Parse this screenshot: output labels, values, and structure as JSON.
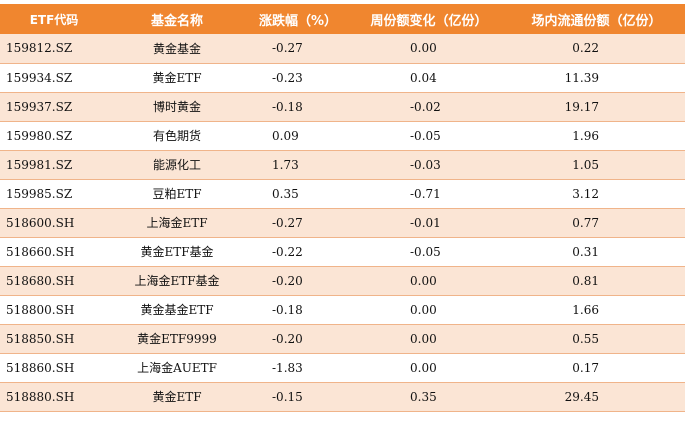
{
  "headers": {
    "code": "ETF代码",
    "name": "基金名称",
    "change": "涨跌幅（%）",
    "weekly_change": "周份额变化（亿份）",
    "shares": "场内流通份额（亿份）"
  },
  "rows": [
    {
      "code": "159812.SZ",
      "name": "黄金基金",
      "change": "-0.27",
      "weekly_change": "0.00",
      "shares": "0.22"
    },
    {
      "code": "159934.SZ",
      "name": "黄金ETF",
      "change": "-0.23",
      "weekly_change": "0.04",
      "shares": "11.39"
    },
    {
      "code": "159937.SZ",
      "name": "博时黄金",
      "change": "-0.18",
      "weekly_change": "-0.02",
      "shares": "19.17"
    },
    {
      "code": "159980.SZ",
      "name": "有色期货",
      "change": "0.09",
      "weekly_change": "-0.05",
      "shares": "1.96"
    },
    {
      "code": "159981.SZ",
      "name": "能源化工",
      "change": "1.73",
      "weekly_change": "-0.03",
      "shares": "1.05"
    },
    {
      "code": "159985.SZ",
      "name": "豆粕ETF",
      "change": "0.35",
      "weekly_change": "-0.71",
      "shares": "3.12"
    },
    {
      "code": "518600.SH",
      "name": "上海金ETF",
      "change": "-0.27",
      "weekly_change": "-0.01",
      "shares": "0.77"
    },
    {
      "code": "518660.SH",
      "name": "黄金ETF基金",
      "change": "-0.22",
      "weekly_change": "-0.05",
      "shares": "0.31"
    },
    {
      "code": "518680.SH",
      "name": "上海金ETF基金",
      "change": "-0.20",
      "weekly_change": "0.00",
      "shares": "0.81"
    },
    {
      "code": "518800.SH",
      "name": "黄金基金ETF",
      "change": "-0.18",
      "weekly_change": "0.00",
      "shares": "1.66"
    },
    {
      "code": "518850.SH",
      "name": "黄金ETF9999",
      "change": "-0.20",
      "weekly_change": "0.00",
      "shares": "0.55"
    },
    {
      "code": "518860.SH",
      "name": "上海金AUETF",
      "change": "-1.83",
      "weekly_change": "0.00",
      "shares": "0.17"
    },
    {
      "code": "518880.SH",
      "name": "黄金ETF",
      "change": "-0.15",
      "weekly_change": "0.35",
      "shares": "29.45"
    }
  ],
  "colors": {
    "header_bg": "#f0862f",
    "odd_row_bg": "#fbe5d5",
    "even_row_bg": "#ffffff"
  }
}
